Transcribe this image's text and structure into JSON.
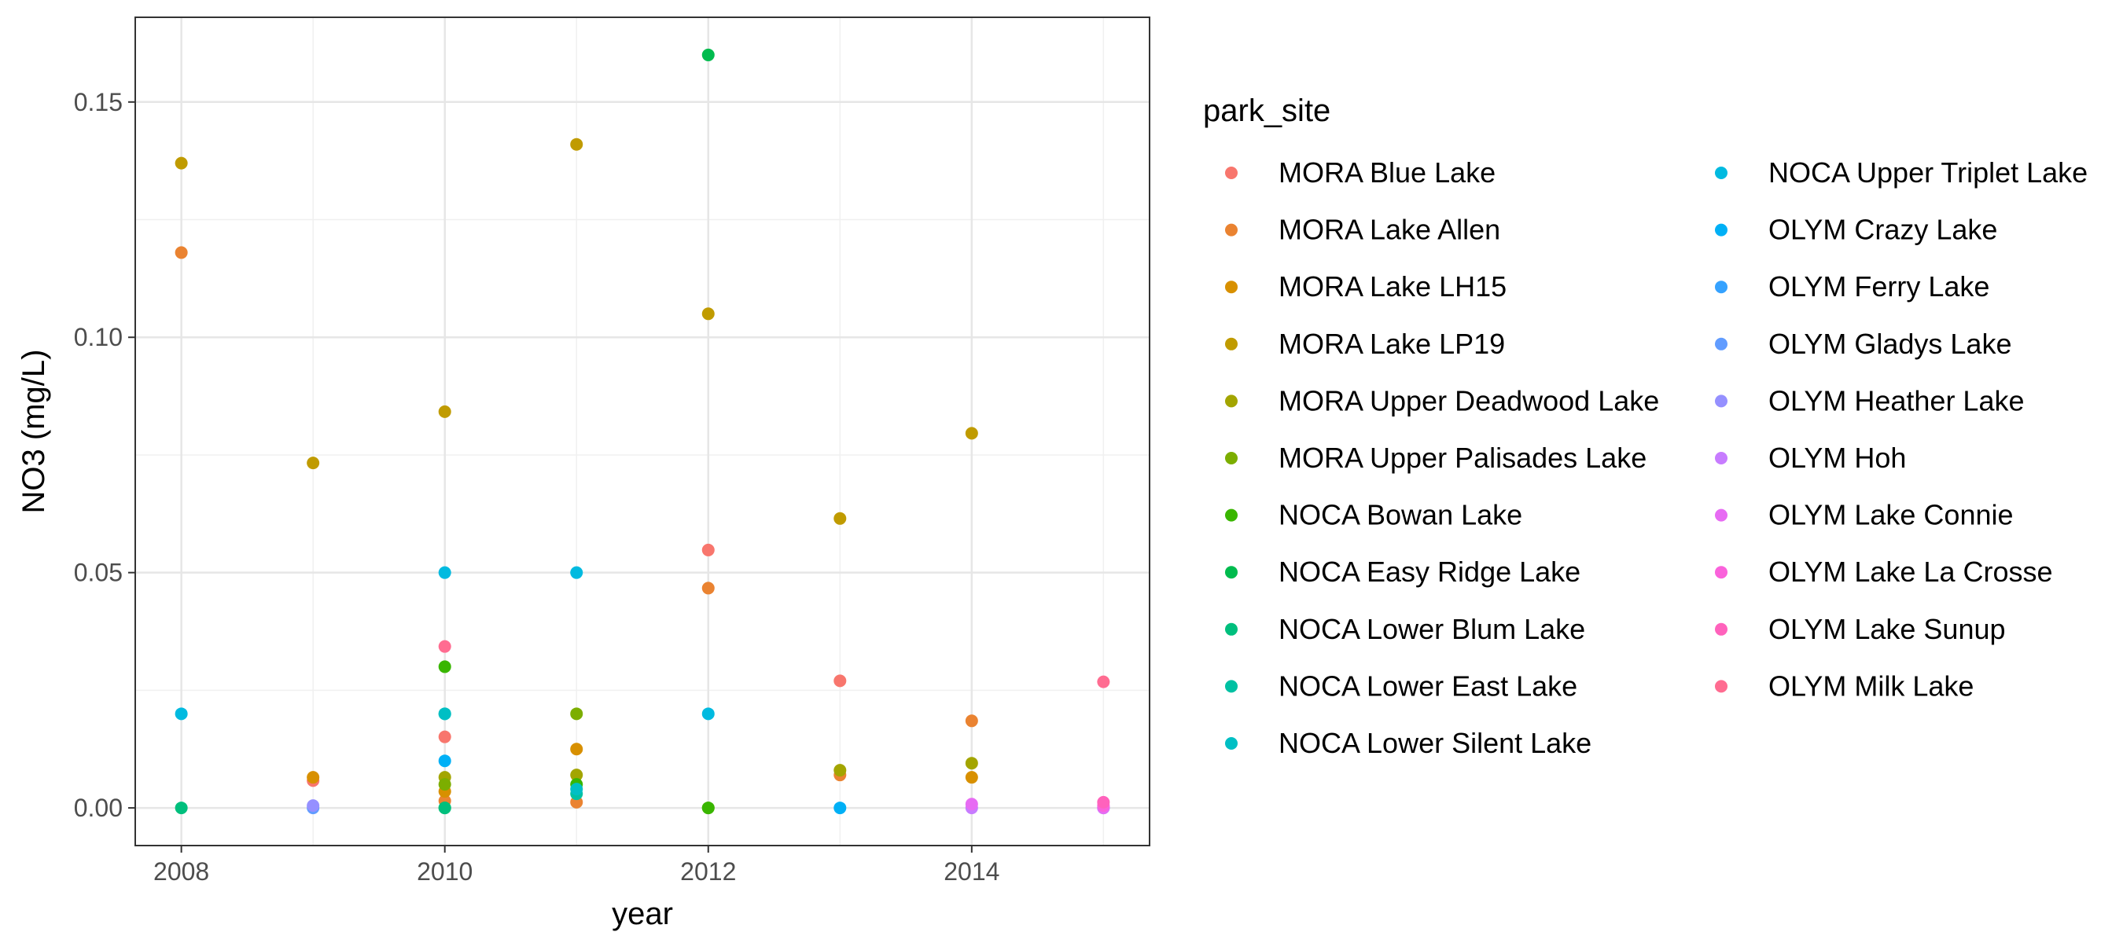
{
  "chart_data": {
    "type": "scatter",
    "title": "",
    "xlabel": "year",
    "ylabel": "NO3 (mg/L)",
    "xlim": [
      2007.65,
      2015.35
    ],
    "ylim": [
      -0.008,
      0.168
    ],
    "xticks": [
      2008,
      2010,
      2012,
      2014
    ],
    "yticks": [
      0.0,
      0.05,
      0.1,
      0.15
    ],
    "ytick_labels": [
      "0.00",
      "0.05",
      "0.10",
      "0.15"
    ],
    "grid": true,
    "legend_title": "park_site",
    "legend_position": "right",
    "series": [
      {
        "name": "MORA Blue Lake",
        "color": "#F8766D",
        "points": [
          [
            2009,
            0.0058
          ],
          [
            2010,
            0.0151
          ],
          [
            2012,
            0.0548
          ],
          [
            2013,
            0.027
          ]
        ]
      },
      {
        "name": "MORA Lake Allen",
        "color": "#EA8331",
        "points": [
          [
            2008,
            0.118
          ],
          [
            2010,
            0.0015
          ],
          [
            2011,
            0.0012
          ],
          [
            2012,
            0.0467
          ],
          [
            2013,
            0.007
          ],
          [
            2014,
            0.0185
          ]
        ]
      },
      {
        "name": "MORA Lake LH15",
        "color": "#D89000",
        "points": [
          [
            2009,
            0.0065
          ],
          [
            2010,
            0.0035
          ],
          [
            2011,
            0.0125
          ],
          [
            2014,
            0.0065
          ]
        ]
      },
      {
        "name": "MORA Lake LP19",
        "color": "#C09B00",
        "points": [
          [
            2008,
            0.137
          ],
          [
            2009,
            0.0733
          ],
          [
            2010,
            0.0842
          ],
          [
            2011,
            0.141
          ],
          [
            2012,
            0.105
          ],
          [
            2013,
            0.0615
          ],
          [
            2014,
            0.0796
          ]
        ]
      },
      {
        "name": "MORA Upper Deadwood Lake",
        "color": "#A3A500",
        "points": [
          [
            2010,
            0.0065
          ],
          [
            2011,
            0.007
          ],
          [
            2013,
            0.008
          ],
          [
            2014,
            0.0095
          ]
        ]
      },
      {
        "name": "MORA Upper Palisades Lake",
        "color": "#7CAE00",
        "points": [
          [
            2010,
            0.005
          ],
          [
            2011,
            0.02
          ],
          [
            2012,
            0.0
          ]
        ]
      },
      {
        "name": "NOCA Bowan Lake",
        "color": "#39B600",
        "points": [
          [
            2010,
            0.03
          ],
          [
            2011,
            0.005
          ],
          [
            2012,
            0.0
          ]
        ]
      },
      {
        "name": "NOCA Easy Ridge Lake",
        "color": "#00BB4E",
        "points": [
          [
            2012,
            0.16
          ],
          [
            2010,
            0.0
          ]
        ]
      },
      {
        "name": "NOCA Lower Blum Lake",
        "color": "#00BF7D",
        "points": [
          [
            2008,
            0.0
          ],
          [
            2010,
            0.0
          ]
        ]
      },
      {
        "name": "NOCA Lower East Lake",
        "color": "#00C1A3",
        "points": [
          [
            2010,
            0.02
          ],
          [
            2011,
            0.003
          ]
        ]
      },
      {
        "name": "NOCA Lower Silent Lake",
        "color": "#00BFC4",
        "points": [
          [
            2010,
            0.02
          ],
          [
            2011,
            0.004
          ]
        ]
      },
      {
        "name": "NOCA Upper Triplet Lake",
        "color": "#00BAE0",
        "points": [
          [
            2008,
            0.02
          ],
          [
            2010,
            0.05
          ],
          [
            2011,
            0.05
          ],
          [
            2012,
            0.02
          ]
        ]
      },
      {
        "name": "OLYM Crazy Lake",
        "color": "#00B0F6",
        "points": [
          [
            2010,
            0.01
          ],
          [
            2013,
            0.0
          ]
        ]
      },
      {
        "name": "OLYM Ferry Lake",
        "color": "#35A2FF",
        "points": [
          [
            2015,
            0.0
          ]
        ]
      },
      {
        "name": "OLYM Gladys Lake",
        "color": "#619CFF",
        "points": [
          [
            2009,
            0.0
          ]
        ]
      },
      {
        "name": "OLYM Heather Lake",
        "color": "#9590FF",
        "points": [
          [
            2009,
            0.0005
          ]
        ]
      },
      {
        "name": "OLYM Hoh",
        "color": "#C77CFF",
        "points": [
          [
            2014,
            0.0
          ]
        ]
      },
      {
        "name": "OLYM Lake Connie",
        "color": "#E76BF3",
        "points": [
          [
            2014,
            0.0008
          ],
          [
            2015,
            0.0
          ]
        ]
      },
      {
        "name": "OLYM Lake La Crosse",
        "color": "#FA62DB",
        "points": [
          [
            2015,
            0.0005
          ]
        ]
      },
      {
        "name": "OLYM Lake Sunup",
        "color": "#FF62BC",
        "points": [
          [
            2015,
            0.0012
          ]
        ]
      },
      {
        "name": "OLYM Milk Lake",
        "color": "#FF6C91",
        "points": [
          [
            2010,
            0.0343
          ],
          [
            2015,
            0.0268
          ]
        ]
      }
    ]
  }
}
